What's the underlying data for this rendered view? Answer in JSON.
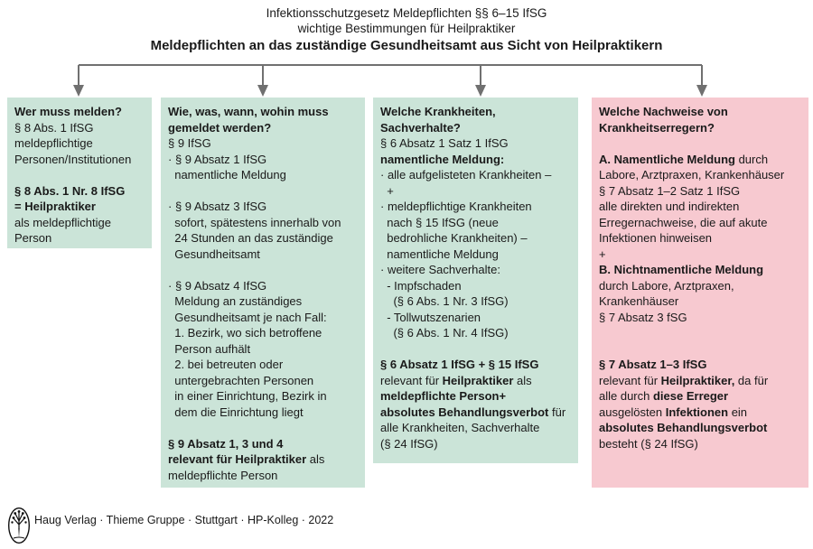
{
  "header": {
    "title_line1": "Infektionsschutzgesetz Meldepflichten §§ 6–15 IfSG",
    "title_line2": "wichtige Bestimmungen für Heilpraktiker",
    "subtitle": "Meldepflichten an das zuständige Gesundheitsamt aus Sicht von Heilpraktikern"
  },
  "colors": {
    "green": "#cbe4d8",
    "pink": "#f7c9d0",
    "connector": "#707070",
    "text": "#1a1a1a"
  },
  "boxes": [
    {
      "id": "wer-muss-melden",
      "color": "green",
      "lines": [
        [
          {
            "t": "Wer muss melden?",
            "b": true
          }
        ],
        [
          {
            "t": "§ 8 Abs. 1 IfSG"
          }
        ],
        [
          {
            "t": "meldepflichtige"
          }
        ],
        [
          {
            "t": "Personen/Institutionen"
          }
        ],
        [],
        [
          {
            "t": "§ 8 Abs. 1 Nr. 8 IfSG",
            "b": true
          }
        ],
        [
          {
            "t": "= Heilpraktiker",
            "b": true
          }
        ],
        [
          {
            "t": "als meldepflichtige"
          }
        ],
        [
          {
            "t": "Person"
          }
        ]
      ]
    },
    {
      "id": "wie-was-wann-wohin",
      "color": "green",
      "lines": [
        [
          {
            "t": "Wie, was, wann, wohin muss",
            "b": true
          }
        ],
        [
          {
            "t": "gemeldet werden?",
            "b": true
          }
        ],
        [
          {
            "t": "§ 9 IfSG"
          }
        ],
        [
          {
            "t": "· § 9 Absatz 1 IfSG"
          }
        ],
        [
          {
            "t": "  namentliche Meldung"
          }
        ],
        [],
        [
          {
            "t": "· § 9 Absatz 3 IfSG"
          }
        ],
        [
          {
            "t": "  sofort, spätestens innerhalb von"
          }
        ],
        [
          {
            "t": "  24 Stunden an das zuständige"
          }
        ],
        [
          {
            "t": "  Gesundheitsamt"
          }
        ],
        [],
        [
          {
            "t": "· § 9 Absatz 4 IfSG"
          }
        ],
        [
          {
            "t": "  Meldung an zuständiges"
          }
        ],
        [
          {
            "t": "  Gesundheitsamt je nach Fall:"
          }
        ],
        [
          {
            "t": "  1. Bezirk, wo sich betroffene"
          }
        ],
        [
          {
            "t": "  Person aufhält"
          }
        ],
        [
          {
            "t": "  2. bei betreuten oder"
          }
        ],
        [
          {
            "t": "  untergebrachten Personen"
          }
        ],
        [
          {
            "t": "  in einer Einrichtung, Bezirk in"
          }
        ],
        [
          {
            "t": "  dem die Einrichtung liegt"
          }
        ],
        [],
        [
          {
            "t": "§ 9 Absatz 1, 3 und 4",
            "b": true
          }
        ],
        [
          {
            "t": "relevant für Heilpraktiker",
            "b": true
          },
          {
            "t": " als"
          }
        ],
        [
          {
            "t": "meldepflichte Person"
          }
        ]
      ]
    },
    {
      "id": "welche-krankheiten-sachverhalte",
      "color": "green",
      "lines": [
        [
          {
            "t": "Welche Krankheiten,",
            "b": true
          }
        ],
        [
          {
            "t": "Sachverhalte?",
            "b": true
          }
        ],
        [
          {
            "t": "§ 6 Absatz 1 Satz 1 IfSG"
          }
        ],
        [
          {
            "t": "namentliche Meldung:",
            "b": true
          }
        ],
        [
          {
            "t": "· alle aufgelisteten Krankheiten –"
          }
        ],
        [
          {
            "t": "  +"
          }
        ],
        [
          {
            "t": "· meldepflichtige Krankheiten"
          }
        ],
        [
          {
            "t": "  nach § 15 IfSG (neue"
          }
        ],
        [
          {
            "t": "  bedrohliche Krankheiten) –"
          }
        ],
        [
          {
            "t": "  namentliche Meldung"
          }
        ],
        [
          {
            "t": "· weitere Sachverhalte:"
          }
        ],
        [
          {
            "t": "  - Impfschaden"
          }
        ],
        [
          {
            "t": "    (§ 6 Abs. 1 Nr. 3 IfSG)"
          }
        ],
        [
          {
            "t": "  - Tollwutszenarien"
          }
        ],
        [
          {
            "t": "    (§ 6 Abs. 1 Nr. 4 IfSG)"
          }
        ],
        [],
        [
          {
            "t": "§ 6 Absatz 1 IfSG + § 15 IfSG",
            "b": true
          }
        ],
        [
          {
            "t": "relevant für "
          },
          {
            "t": "Heilpraktiker",
            "b": true
          },
          {
            "t": " als"
          }
        ],
        [
          {
            "t": "meldepflichte Person+",
            "b": true
          }
        ],
        [
          {
            "t": "absolutes Behandlungsverbot",
            "b": true
          },
          {
            "t": " für"
          }
        ],
        [
          {
            "t": "alle Krankheiten, Sachverhalte"
          }
        ],
        [
          {
            "t": "(§ 24 IfSG)"
          }
        ]
      ]
    },
    {
      "id": "welche-nachweise-von-krankheitserregern",
      "color": "pink",
      "lines": [
        [
          {
            "t": "Welche Nachweise von",
            "b": true
          }
        ],
        [
          {
            "t": "Krankheitserregern?",
            "b": true
          }
        ],
        [],
        [
          {
            "t": "A. Namentliche Meldung",
            "b": true
          },
          {
            "t": " durch"
          }
        ],
        [
          {
            "t": "Labore, Arztpraxen, Krankenhäuser"
          }
        ],
        [
          {
            "t": "§ 7 Absatz 1–2 Satz 1 IfSG"
          }
        ],
        [
          {
            "t": "alle direkten und indirekten"
          }
        ],
        [
          {
            "t": "Erregernachweise, die auf akute"
          }
        ],
        [
          {
            "t": "Infektionen hinweisen"
          }
        ],
        [
          {
            "t": "+"
          }
        ],
        [
          {
            "t": "B. Nichtnamentliche Meldung",
            "b": true
          }
        ],
        [
          {
            "t": "durch Labore, Arztpraxen,"
          }
        ],
        [
          {
            "t": "Krankenhäuser"
          }
        ],
        [
          {
            "t": "§ 7 Absatz 3 fSG"
          }
        ],
        [],
        [],
        [
          {
            "t": "§ 7 Absatz 1–3 IfSG",
            "b": true
          }
        ],
        [
          {
            "t": "relevant für "
          },
          {
            "t": "Heilpraktiker,",
            "b": true
          },
          {
            "t": " da für"
          }
        ],
        [
          {
            "t": "alle durch "
          },
          {
            "t": "diese Erreger",
            "b": true
          }
        ],
        [
          {
            "t": "ausgelösten "
          },
          {
            "t": "Infektionen",
            "b": true
          },
          {
            "t": " ein"
          }
        ],
        [
          {
            "t": "absolutes Behandlungsverbot",
            "b": true
          }
        ],
        [
          {
            "t": "besteht (§ 24 IfSG)"
          }
        ]
      ]
    }
  ],
  "footer": {
    "credit": "Haug Verlag · Thieme Gruppe · Stuttgart · HP-Kolleg · 2022",
    "logo": "thieme-tree-logo"
  }
}
